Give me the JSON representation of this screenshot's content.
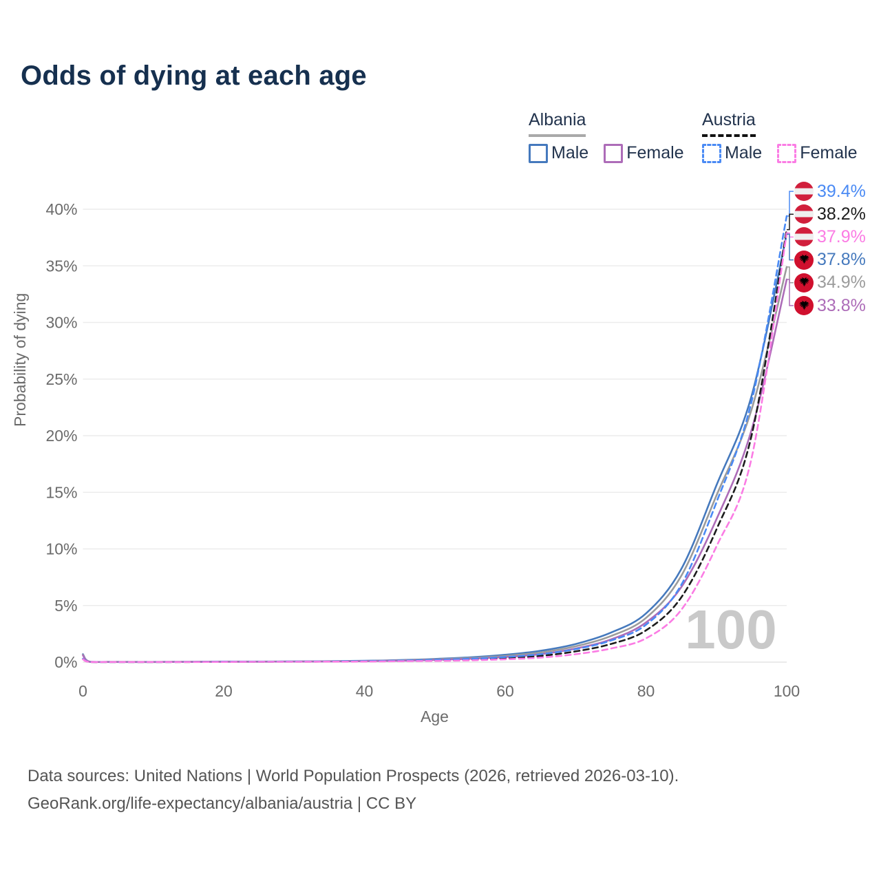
{
  "title": "Odds of dying at each age",
  "legend": {
    "groups": [
      {
        "country": "Albania",
        "line_style": "solid",
        "underline_color": "#a9a9a9",
        "items": [
          {
            "label": "Male",
            "color": "#4579bd",
            "dashed": false
          },
          {
            "label": "Female",
            "color": "#ad6cb8",
            "dashed": false
          }
        ]
      },
      {
        "country": "Austria",
        "line_style": "dashed",
        "underline_color": "#111111",
        "items": [
          {
            "label": "Male",
            "color": "#4a8af4",
            "dashed": true
          },
          {
            "label": "Female",
            "color": "#fb7ce4",
            "dashed": true
          }
        ]
      }
    ]
  },
  "watermark": "100",
  "footer": {
    "line1": "Data sources: United Nations | World Population Prospects (2026, retrieved 2026-03-10).",
    "line2": "GeoRank.org/life-expectancy/albania/austria | CC BY"
  },
  "chart_data": {
    "type": "line",
    "title": "Odds of dying at each age",
    "xlabel": "Age",
    "ylabel": "Probability of dying",
    "xlim": [
      0,
      100
    ],
    "ylim": [
      0,
      40
    ],
    "x_ticks": [
      0,
      20,
      40,
      60,
      80,
      100
    ],
    "y_ticks": [
      0,
      5,
      10,
      15,
      20,
      25,
      30,
      35,
      40
    ],
    "y_tick_suffix": "%",
    "grid": true,
    "legend_position": "top-right",
    "hover_age_indicator": "100",
    "ages": [
      0,
      1,
      5,
      10,
      15,
      20,
      25,
      30,
      35,
      40,
      45,
      50,
      55,
      60,
      65,
      70,
      75,
      80,
      85,
      90,
      95,
      100
    ],
    "series": [
      {
        "name": "Albania Male",
        "country": "Albania",
        "sex": "Male",
        "color": "#4579bd",
        "dashed": false,
        "flag": "albania",
        "end_value_pct": 37.8,
        "end_label": "37.8%",
        "end_label_color": "#4579bd",
        "values": [
          0.7,
          0.03,
          0.02,
          0.02,
          0.03,
          0.05,
          0.05,
          0.06,
          0.08,
          0.12,
          0.18,
          0.28,
          0.42,
          0.65,
          1.0,
          1.6,
          2.6,
          4.3,
          8.2,
          15.6,
          23.5,
          37.8
        ]
      },
      {
        "name": "Albania Both sexes",
        "country": "Albania",
        "sex": "Both",
        "color": "#9b9b9b",
        "dashed": false,
        "flag": "albania",
        "end_value_pct": 34.9,
        "end_label": "34.9%",
        "end_label_color": "#9b9b9b",
        "values": [
          0.65,
          0.03,
          0.02,
          0.015,
          0.025,
          0.04,
          0.045,
          0.05,
          0.07,
          0.1,
          0.15,
          0.24,
          0.36,
          0.55,
          0.85,
          1.4,
          2.3,
          3.9,
          7.6,
          14.7,
          22.3,
          34.9
        ]
      },
      {
        "name": "Albania Female",
        "country": "Albania",
        "sex": "Female",
        "color": "#ad6cb8",
        "dashed": false,
        "flag": "albania",
        "end_value_pct": 33.8,
        "end_label": "33.8%",
        "end_label_color": "#ad6cb8",
        "values": [
          0.6,
          0.025,
          0.015,
          0.015,
          0.02,
          0.03,
          0.04,
          0.05,
          0.06,
          0.09,
          0.13,
          0.2,
          0.3,
          0.45,
          0.7,
          1.2,
          2.0,
          3.5,
          6.6,
          12.6,
          20.5,
          33.8
        ]
      },
      {
        "name": "Austria Both sexes",
        "country": "Austria",
        "sex": "Both",
        "color": "#1c1c1c",
        "dashed": true,
        "flag": "austria",
        "end_value_pct": 38.2,
        "end_label": "38.2%",
        "end_label_color": "#1c1c1c",
        "values": [
          0.28,
          0.015,
          0.01,
          0.01,
          0.015,
          0.03,
          0.035,
          0.04,
          0.05,
          0.07,
          0.1,
          0.15,
          0.23,
          0.35,
          0.55,
          0.95,
          1.6,
          2.8,
          5.7,
          11.7,
          20.0,
          38.2
        ]
      },
      {
        "name": "Austria Male",
        "country": "Austria",
        "sex": "Male",
        "color": "#4a8af4",
        "dashed": true,
        "flag": "austria",
        "end_value_pct": 39.4,
        "end_label": "39.4%",
        "end_label_color": "#4a8af4",
        "values": [
          0.3,
          0.02,
          0.01,
          0.01,
          0.02,
          0.04,
          0.04,
          0.05,
          0.06,
          0.09,
          0.13,
          0.2,
          0.3,
          0.45,
          0.7,
          1.15,
          1.9,
          3.3,
          6.8,
          14.1,
          23.0,
          39.4
        ]
      },
      {
        "name": "Austria Female",
        "country": "Austria",
        "sex": "Female",
        "color": "#fb7ce4",
        "dashed": true,
        "flag": "austria",
        "end_value_pct": 37.9,
        "end_label": "37.9%",
        "end_label_color": "#fb7ce4",
        "values": [
          0.25,
          0.015,
          0.01,
          0.01,
          0.01,
          0.02,
          0.03,
          0.03,
          0.04,
          0.05,
          0.08,
          0.11,
          0.16,
          0.25,
          0.4,
          0.7,
          1.2,
          2.1,
          4.6,
          10.2,
          18.0,
          37.9
        ]
      }
    ]
  }
}
